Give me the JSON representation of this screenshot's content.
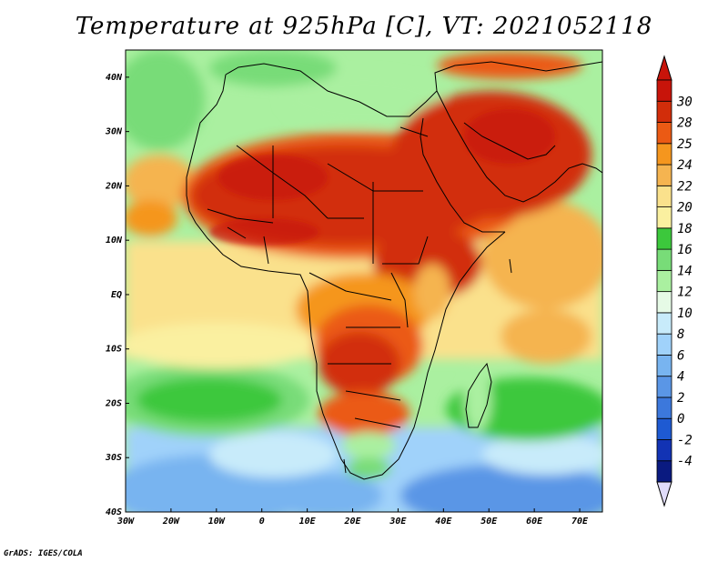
{
  "title": "Temperature at 925hPa [C], VT: 2021052118",
  "credit": "GrADS: IGES/COLA",
  "map": {
    "lon_range": [
      -30,
      75
    ],
    "lat_range": [
      -40,
      45
    ],
    "lon_ticks": [
      {
        "value": -30,
        "label": "30W"
      },
      {
        "value": -20,
        "label": "20W"
      },
      {
        "value": -10,
        "label": "10W"
      },
      {
        "value": 0,
        "label": "0"
      },
      {
        "value": 10,
        "label": "10E"
      },
      {
        "value": 20,
        "label": "20E"
      },
      {
        "value": 30,
        "label": "30E"
      },
      {
        "value": 40,
        "label": "40E"
      },
      {
        "value": 50,
        "label": "50E"
      },
      {
        "value": 60,
        "label": "60E"
      },
      {
        "value": 70,
        "label": "70E"
      }
    ],
    "lat_ticks": [
      {
        "value": 40,
        "label": "40N"
      },
      {
        "value": 30,
        "label": "30N"
      },
      {
        "value": 20,
        "label": "20N"
      },
      {
        "value": 10,
        "label": "10N"
      },
      {
        "value": 0,
        "label": "EQ"
      },
      {
        "value": -10,
        "label": "10S"
      },
      {
        "value": -20,
        "label": "20S"
      },
      {
        "value": -30,
        "label": "30S"
      },
      {
        "value": -40,
        "label": "40S"
      }
    ]
  },
  "colorbar": {
    "levels": [
      "-4",
      "-2",
      "0",
      "2",
      "4",
      "6",
      "8",
      "10",
      "12",
      "14",
      "16",
      "18",
      "20",
      "22",
      "24",
      "25",
      "28",
      "30"
    ],
    "colors": [
      "#0a1a80",
      "#1233b4",
      "#1e5ad2",
      "#3c78dc",
      "#5a96e6",
      "#78b4f0",
      "#a0d2fa",
      "#c8ebfa",
      "#e6fae6",
      "#aaf0a0",
      "#78dc78",
      "#3cc83c",
      "#faf0a0",
      "#fae18c",
      "#f5b450",
      "#f5961e",
      "#eb5a14",
      "#d22d0a",
      "#c8140a"
    ],
    "low_end_color": "#e0dcfa"
  }
}
